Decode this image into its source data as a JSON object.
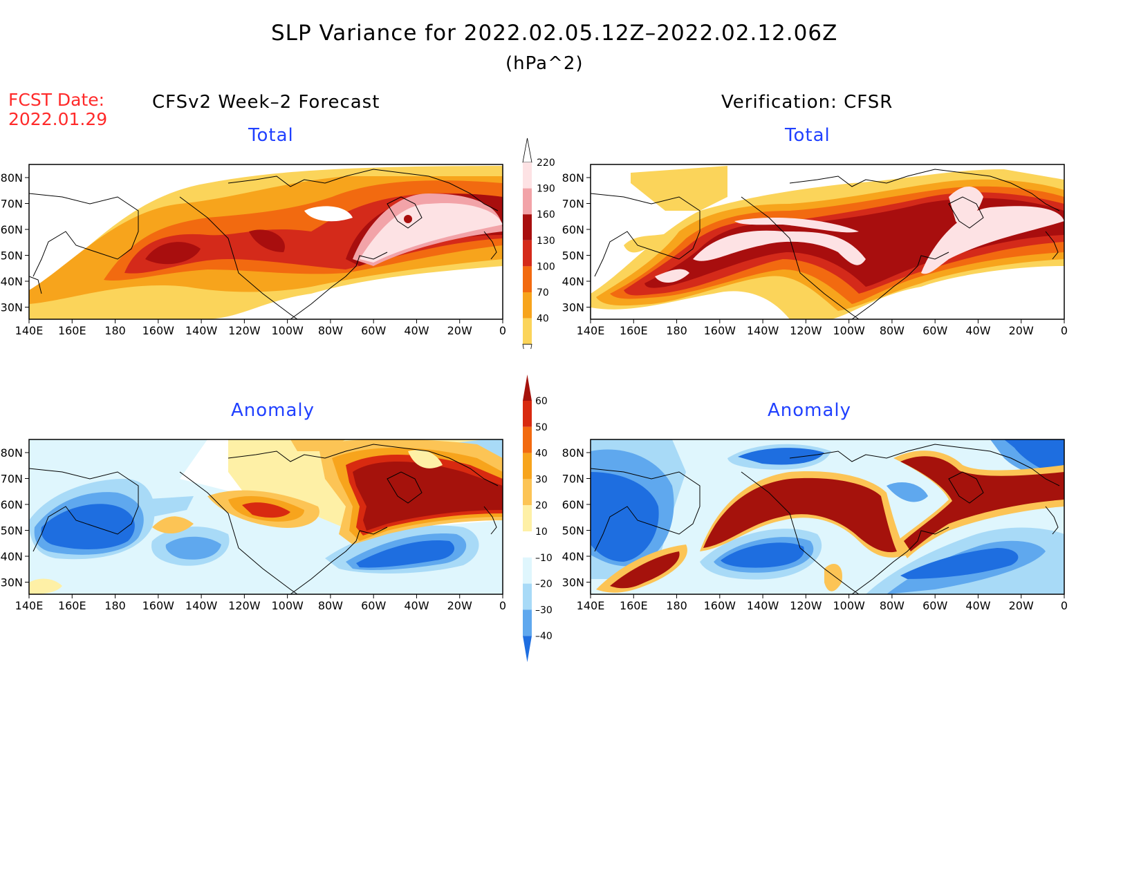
{
  "header": {
    "title": "SLP Variance for 2022.02.05.12Z–2022.02.12.06Z",
    "units": "(hPa^2)",
    "fcst_label": "FCST Date:",
    "fcst_date": "2022.01.29",
    "left_heading": "CFSv2 Week–2 Forecast",
    "right_heading": "Verification: CFSR"
  },
  "panels": [
    {
      "id": "forecast-total",
      "title": "Total"
    },
    {
      "id": "verification-total",
      "title": "Total"
    },
    {
      "id": "forecast-anomaly",
      "title": "Anomaly"
    },
    {
      "id": "verification-anomaly",
      "title": "Anomaly"
    }
  ],
  "axes": {
    "lon_labels": [
      "140E",
      "160E",
      "180",
      "160W",
      "140W",
      "120W",
      "100W",
      "80W",
      "60W",
      "40W",
      "20W",
      "0"
    ],
    "lat_labels": [
      "80N",
      "70N",
      "60N",
      "50N",
      "40N",
      "30N"
    ]
  },
  "colorbars": {
    "total": {
      "labels": [
        "220",
        "190",
        "160",
        "130",
        "100",
        "70",
        "40"
      ],
      "colors": [
        "#fde2e4",
        "#f2a3a8",
        "#a80e0e",
        "#d42a1a",
        "#f26a10",
        "#f7a41c",
        "#fbd45a"
      ]
    },
    "anomaly": {
      "labels": [
        "60",
        "50",
        "40",
        "30",
        "20",
        "10",
        "–10",
        "–20",
        "–30",
        "–40"
      ],
      "colors": [
        "#a5120c",
        "#d82a10",
        "#f26a10",
        "#f7a41c",
        "#fcc455",
        "#fef0a6",
        "#ffffff",
        "#dff6fd",
        "#a8daf7",
        "#5fa8ee",
        "#1e6ee0"
      ]
    }
  },
  "palette": {
    "land_outline": "#000000",
    "title_blue": "#2040ff",
    "fcst_red": "#ff2a2a"
  }
}
